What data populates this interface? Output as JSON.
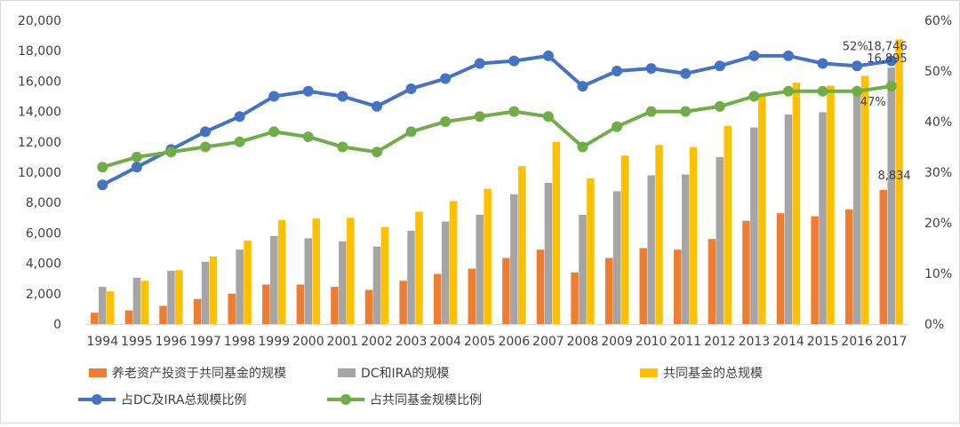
{
  "chart_data": {
    "type": "bar",
    "categories": [
      "1994",
      "1995",
      "1996",
      "1997",
      "1998",
      "1999",
      "2000",
      "2001",
      "2002",
      "2003",
      "2004",
      "2005",
      "2006",
      "2007",
      "2008",
      "2009",
      "2010",
      "2011",
      "2012",
      "2013",
      "2014",
      "2015",
      "2016",
      "2017"
    ],
    "series": [
      {
        "name": "养老资产投资于共同基金的规模",
        "kind": "bar",
        "axis": "left",
        "color": "#ED7D31",
        "values": [
          750,
          900,
          1200,
          1650,
          2000,
          2600,
          2600,
          2450,
          2250,
          2850,
          3300,
          3650,
          4350,
          4900,
          3400,
          4350,
          5000,
          4900,
          5600,
          6800,
          7300,
          7100,
          7550,
          8834
        ]
      },
      {
        "name": "DC和IRA的规模",
        "kind": "bar",
        "axis": "left",
        "color": "#A5A5A5",
        "values": [
          2450,
          3050,
          3500,
          4100,
          4900,
          5800,
          5650,
          5450,
          5100,
          6150,
          6750,
          7200,
          8550,
          9300,
          7200,
          8750,
          9800,
          9850,
          11000,
          12950,
          13800,
          13950,
          15200,
          16895
        ]
      },
      {
        "name": "共同基金的总规模",
        "kind": "bar",
        "axis": "left",
        "color": "#FFC000",
        "values": [
          2150,
          2850,
          3550,
          4450,
          5500,
          6850,
          6950,
          7000,
          6400,
          7400,
          8100,
          8900,
          10400,
          12000,
          9600,
          11100,
          11800,
          11650,
          13050,
          15050,
          15900,
          15700,
          16350,
          18746
        ]
      },
      {
        "name": "占DC及IRA总规模比例",
        "kind": "line",
        "axis": "right",
        "color": "#4472C4",
        "values": [
          27.5,
          31,
          34.5,
          38,
          41,
          45,
          46,
          45,
          43,
          46.5,
          48.5,
          51.5,
          52,
          53,
          47,
          50,
          50.5,
          49.5,
          51,
          53,
          53,
          51.5,
          51,
          52
        ]
      },
      {
        "name": "占共同基金规模比例",
        "kind": "line",
        "axis": "right",
        "color": "#70AD47",
        "values": [
          31,
          33,
          34,
          35,
          36,
          38,
          37,
          35,
          34,
          38,
          40,
          41,
          42,
          41,
          35,
          39,
          42,
          42,
          43,
          45,
          46,
          46,
          46,
          47
        ]
      }
    ],
    "left_axis": {
      "ylim": [
        0,
        20000
      ],
      "ticks": [
        "0",
        "2,000",
        "4,000",
        "6,000",
        "8,000",
        "10,000",
        "12,000",
        "14,000",
        "16,000",
        "18,000",
        "20,000"
      ]
    },
    "right_axis": {
      "ylim": [
        0,
        60
      ],
      "ticks": [
        "0%",
        "10%",
        "20%",
        "30%",
        "40%",
        "50%",
        "60%"
      ]
    },
    "data_labels": [
      {
        "text": "18,746",
        "category": "2017",
        "series": 2
      },
      {
        "text": "16,895",
        "category": "2017",
        "series": 1
      },
      {
        "text": "8,834",
        "category": "2017",
        "series": 0
      },
      {
        "text": "52%",
        "category": "2017",
        "series": 3
      },
      {
        "text": "47%",
        "category": "2017",
        "series": 4
      }
    ],
    "grid": false,
    "legend_position": "bottom"
  }
}
